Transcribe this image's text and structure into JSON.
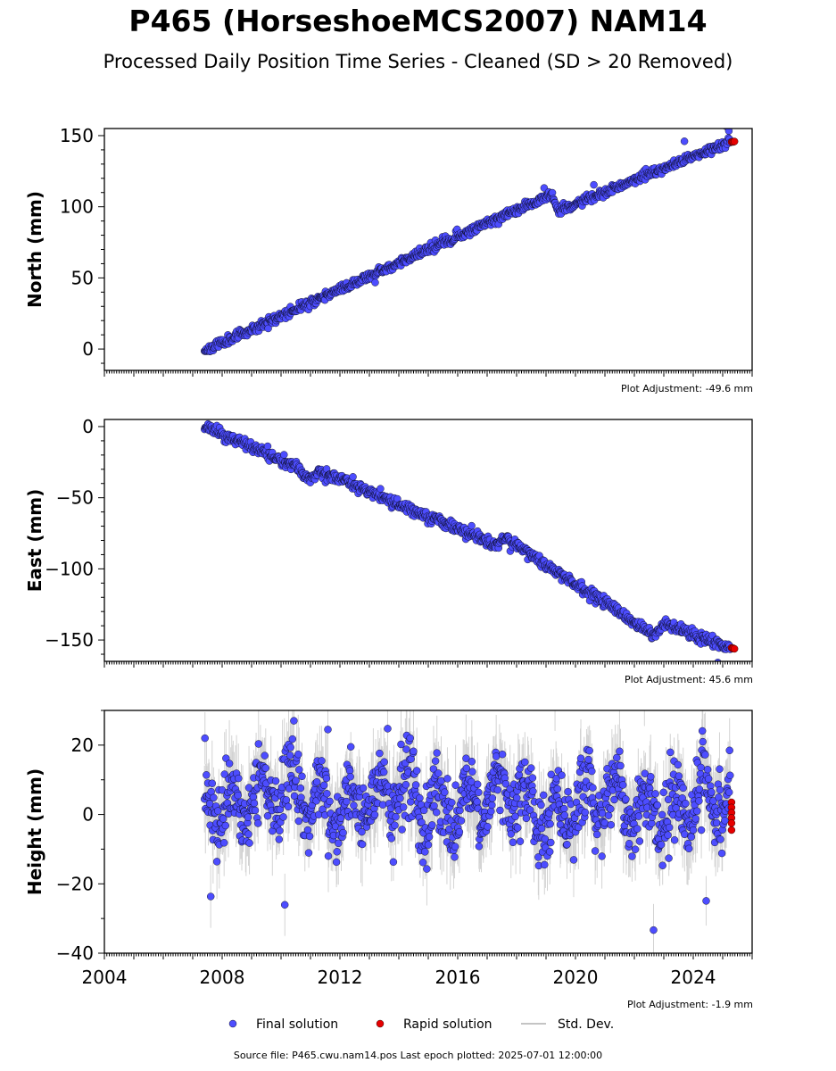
{
  "header": {
    "title": "P465 (HorseshoeMCS2007) NAM14",
    "subtitle": "Processed Daily Position Time Series - Cleaned (SD > 20 Removed)"
  },
  "footer": {
    "source": "Source file: P465.cwu.nam14.pos  Last epoch plotted: 2025-07-01 12:00:00"
  },
  "legend": {
    "final": "Final solution",
    "rapid": "Rapid solution",
    "std": "Std. Dev."
  },
  "colors": {
    "final": "#4d4dff",
    "rapid": "#e60000",
    "std": "#b0b0b0",
    "edge": "#000000"
  },
  "chart_data": [
    {
      "type": "scatter",
      "ylabel": "North (mm)",
      "plot_adjustment": "Plot Adjustment: -49.6 mm",
      "xlim": [
        2004,
        2026
      ],
      "ylim": [
        -15,
        155
      ],
      "yticks": [
        0,
        50,
        100,
        150
      ],
      "trend": [
        [
          2007.4,
          -1
        ],
        [
          2019.2,
          109
        ],
        [
          2019.4,
          97
        ],
        [
          2025.3,
          146
        ]
      ],
      "noise_mm": 1.5,
      "seed": 11,
      "rapid": [
        [
          2025.3,
          145.5
        ],
        [
          2025.33,
          145.8
        ],
        [
          2025.36,
          145.6
        ],
        [
          2025.4,
          145.9
        ]
      ]
    },
    {
      "type": "scatter",
      "ylabel": "East (mm)",
      "plot_adjustment": "Plot Adjustment: 45.6 mm",
      "xlim": [
        2004,
        2026
      ],
      "ylim": [
        -165,
        5
      ],
      "yticks": [
        -150,
        -100,
        -50,
        0
      ],
      "trend": [
        [
          2007.4,
          0
        ],
        [
          2010.5,
          -28
        ],
        [
          2011.0,
          -37
        ],
        [
          2011.3,
          -31
        ],
        [
          2017.3,
          -83
        ],
        [
          2017.6,
          -78
        ],
        [
          2022.7,
          -147
        ],
        [
          2023.0,
          -138
        ],
        [
          2025.3,
          -156
        ]
      ],
      "noise_mm": 1.8,
      "seed": 23,
      "rapid": [
        [
          2025.3,
          -155.5
        ],
        [
          2025.33,
          -156.0
        ],
        [
          2025.36,
          -155.8
        ],
        [
          2025.4,
          -156.2
        ]
      ]
    },
    {
      "type": "scatter",
      "ylabel": "Height (mm)",
      "plot_adjustment": "Plot Adjustment: -1.9 mm",
      "xlim": [
        2004,
        2026
      ],
      "ylim": [
        -40,
        30
      ],
      "yticks": [
        -40,
        -20,
        0,
        20
      ],
      "xticks": [
        2004,
        2008,
        2012,
        2016,
        2020,
        2024
      ],
      "trend": [
        [
          2007.4,
          5
        ],
        [
          2025.3,
          2
        ]
      ],
      "seasonal_amp": 6,
      "noise_mm": 5,
      "seed": 37,
      "with_std": true,
      "rapid": [
        [
          2025.3,
          3.5
        ],
        [
          2025.3,
          2.0
        ],
        [
          2025.3,
          0.5
        ],
        [
          2025.3,
          -1.0
        ],
        [
          2025.3,
          -2.5
        ],
        [
          2025.3,
          -4.5
        ]
      ]
    }
  ]
}
